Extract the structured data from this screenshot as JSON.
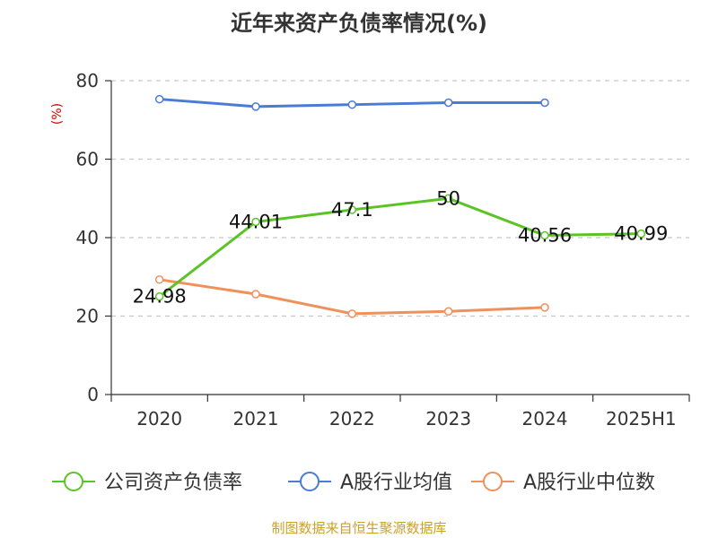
{
  "title": "近年来资产负债率情况(%)",
  "source": "制图数据来自恒生聚源数据库",
  "chart_data": {
    "type": "line",
    "title": "近年来资产负债率情况(%)",
    "ylabel": "(%)",
    "ylabel_color": "#cc0000",
    "categories": [
      "2020",
      "2021",
      "2022",
      "2023",
      "2024",
      "2025H1"
    ],
    "ylim": [
      0,
      80
    ],
    "yticks": [
      0,
      20,
      40,
      60,
      80
    ],
    "grid": true,
    "legend_position": "bottom",
    "series": [
      {
        "name": "公司资产负债率",
        "color": "#5ac426",
        "values": [
          24.98,
          44.01,
          47.1,
          50,
          40.56,
          40.99
        ],
        "labels": [
          "24.98",
          "44.01",
          "47.1",
          "50",
          "40.56",
          "40.99"
        ]
      },
      {
        "name": "A股行业均值",
        "color": "#4a7bd6",
        "values": [
          75.3,
          73.4,
          73.9,
          74.4,
          74.4,
          null
        ]
      },
      {
        "name": "A股行业中位数",
        "color": "#f0905a",
        "values": [
          29.3,
          25.6,
          20.6,
          21.2,
          22.2,
          null
        ]
      }
    ]
  }
}
